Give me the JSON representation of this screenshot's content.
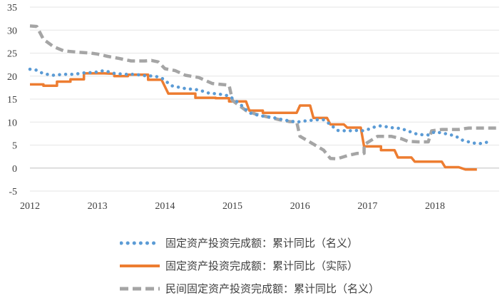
{
  "chart_data": {
    "type": "line",
    "title": "",
    "xlabel": "",
    "ylabel": "",
    "ylim": [
      -5,
      35
    ],
    "yticks": [
      -5,
      0,
      5,
      10,
      15,
      20,
      25,
      30,
      35
    ],
    "xticks": [
      "2012",
      "2013",
      "2014",
      "2015",
      "2016",
      "2017",
      "2018"
    ],
    "xlim": [
      2012.0,
      2018.95
    ],
    "grid": "horizontal",
    "legend_position": "bottom",
    "series": [
      {
        "name": "固定资产投资完成额：累计同比（名义）",
        "color": "#5b9bd5",
        "style": "dotted",
        "points": [
          [
            2012.0,
            21.5
          ],
          [
            2012.1,
            21.3
          ],
          [
            2012.2,
            20.5
          ],
          [
            2012.35,
            20.2
          ],
          [
            2012.5,
            20.4
          ],
          [
            2012.65,
            20.4
          ],
          [
            2012.8,
            20.7
          ],
          [
            2012.95,
            20.8
          ],
          [
            2013.1,
            21.2
          ],
          [
            2013.25,
            20.6
          ],
          [
            2013.4,
            20.4
          ],
          [
            2013.55,
            20.4
          ],
          [
            2013.7,
            20.1
          ],
          [
            2013.85,
            20.0
          ],
          [
            2013.95,
            19.6
          ],
          [
            2014.1,
            17.9
          ],
          [
            2014.3,
            17.3
          ],
          [
            2014.5,
            17.0
          ],
          [
            2014.65,
            16.3
          ],
          [
            2014.8,
            16.1
          ],
          [
            2014.95,
            15.7
          ],
          [
            2015.1,
            14.1
          ],
          [
            2015.25,
            12.0
          ],
          [
            2015.4,
            11.4
          ],
          [
            2015.6,
            11.0
          ],
          [
            2015.75,
            10.5
          ],
          [
            2015.95,
            10.0
          ],
          [
            2016.1,
            10.3
          ],
          [
            2016.25,
            10.5
          ],
          [
            2016.35,
            10.5
          ],
          [
            2016.45,
            9.5
          ],
          [
            2016.55,
            8.2
          ],
          [
            2016.7,
            8.1
          ],
          [
            2016.85,
            8.2
          ],
          [
            2016.95,
            8.1
          ],
          [
            2017.1,
            8.9
          ],
          [
            2017.2,
            9.2
          ],
          [
            2017.35,
            8.8
          ],
          [
            2017.5,
            8.6
          ],
          [
            2017.65,
            7.8
          ],
          [
            2017.75,
            7.3
          ],
          [
            2017.9,
            7.2
          ],
          [
            2018.0,
            7.9
          ],
          [
            2018.15,
            7.5
          ],
          [
            2018.3,
            7.0
          ],
          [
            2018.4,
            6.1
          ],
          [
            2018.55,
            5.5
          ],
          [
            2018.65,
            5.3
          ],
          [
            2018.8,
            5.7
          ]
        ]
      },
      {
        "name": "固定资产投资完成额：累计同比（实际）",
        "color": "#ed7d31",
        "style": "solid",
        "points": [
          [
            2012.0,
            18.2
          ],
          [
            2012.2,
            18.2
          ],
          [
            2012.2,
            17.9
          ],
          [
            2012.4,
            17.9
          ],
          [
            2012.4,
            18.8
          ],
          [
            2012.6,
            18.8
          ],
          [
            2012.6,
            19.3
          ],
          [
            2012.8,
            19.3
          ],
          [
            2012.8,
            20.6
          ],
          [
            2013.05,
            20.6
          ],
          [
            2013.1,
            20.6
          ],
          [
            2013.25,
            20.5
          ],
          [
            2013.25,
            20.0
          ],
          [
            2013.45,
            20.0
          ],
          [
            2013.45,
            20.3
          ],
          [
            2013.75,
            20.3
          ],
          [
            2013.75,
            19.2
          ],
          [
            2013.95,
            19.2
          ],
          [
            2014.05,
            16.2
          ],
          [
            2014.45,
            16.2
          ],
          [
            2014.45,
            15.3
          ],
          [
            2014.75,
            15.3
          ],
          [
            2014.75,
            15.2
          ],
          [
            2014.95,
            15.2
          ],
          [
            2014.95,
            14.5
          ],
          [
            2015.2,
            14.5
          ],
          [
            2015.25,
            12.5
          ],
          [
            2015.45,
            12.5
          ],
          [
            2015.45,
            12.0
          ],
          [
            2015.95,
            12.0
          ],
          [
            2016.0,
            13.6
          ],
          [
            2016.15,
            13.6
          ],
          [
            2016.2,
            10.9
          ],
          [
            2016.4,
            10.9
          ],
          [
            2016.45,
            9.5
          ],
          [
            2016.65,
            9.5
          ],
          [
            2016.7,
            8.8
          ],
          [
            2016.9,
            8.8
          ],
          [
            2016.95,
            4.7
          ],
          [
            2017.2,
            4.7
          ],
          [
            2017.2,
            3.9
          ],
          [
            2017.4,
            3.9
          ],
          [
            2017.45,
            2.3
          ],
          [
            2017.65,
            2.3
          ],
          [
            2017.7,
            1.4
          ],
          [
            2018.1,
            1.4
          ],
          [
            2018.15,
            0.2
          ],
          [
            2018.35,
            0.2
          ],
          [
            2018.45,
            -0.3
          ],
          [
            2018.62,
            -0.3
          ]
        ]
      },
      {
        "name": "民间固定资产投资完成额：累计同比（名义）",
        "color": "#a5a5a5",
        "style": "dashed",
        "points": [
          [
            2012.0,
            30.9
          ],
          [
            2012.1,
            30.8
          ],
          [
            2012.2,
            28.0
          ],
          [
            2012.35,
            26.4
          ],
          [
            2012.5,
            25.5
          ],
          [
            2012.7,
            25.2
          ],
          [
            2012.9,
            25.0
          ],
          [
            2013.0,
            24.8
          ],
          [
            2013.15,
            24.3
          ],
          [
            2013.3,
            23.9
          ],
          [
            2013.5,
            23.3
          ],
          [
            2013.7,
            23.3
          ],
          [
            2013.8,
            23.4
          ],
          [
            2013.9,
            23.1
          ],
          [
            2014.0,
            21.6
          ],
          [
            2014.15,
            21.2
          ],
          [
            2014.3,
            20.2
          ],
          [
            2014.5,
            19.7
          ],
          [
            2014.7,
            18.4
          ],
          [
            2014.9,
            18.1
          ],
          [
            2014.95,
            18.0
          ],
          [
            2015.0,
            14.7
          ],
          [
            2015.2,
            12.5
          ],
          [
            2015.35,
            11.7
          ],
          [
            2015.5,
            11.2
          ],
          [
            2015.7,
            10.5
          ],
          [
            2015.85,
            10.1
          ],
          [
            2015.95,
            10.1
          ],
          [
            2016.0,
            6.9
          ],
          [
            2016.2,
            5.2
          ],
          [
            2016.35,
            3.9
          ],
          [
            2016.45,
            2.1
          ],
          [
            2016.55,
            2.0
          ],
          [
            2016.7,
            2.7
          ],
          [
            2016.85,
            3.2
          ],
          [
            2016.95,
            3.2
          ],
          [
            2016.95,
            5.1
          ],
          [
            2017.05,
            6.0
          ],
          [
            2017.15,
            6.9
          ],
          [
            2017.35,
            6.9
          ],
          [
            2017.5,
            6.4
          ],
          [
            2017.6,
            5.8
          ],
          [
            2017.75,
            5.7
          ],
          [
            2017.9,
            5.7
          ],
          [
            2017.95,
            8.1
          ],
          [
            2018.1,
            8.4
          ],
          [
            2018.25,
            8.4
          ],
          [
            2018.35,
            8.4
          ],
          [
            2018.5,
            8.7
          ],
          [
            2018.8,
            8.7
          ],
          [
            2018.95,
            8.7
          ]
        ]
      }
    ]
  }
}
